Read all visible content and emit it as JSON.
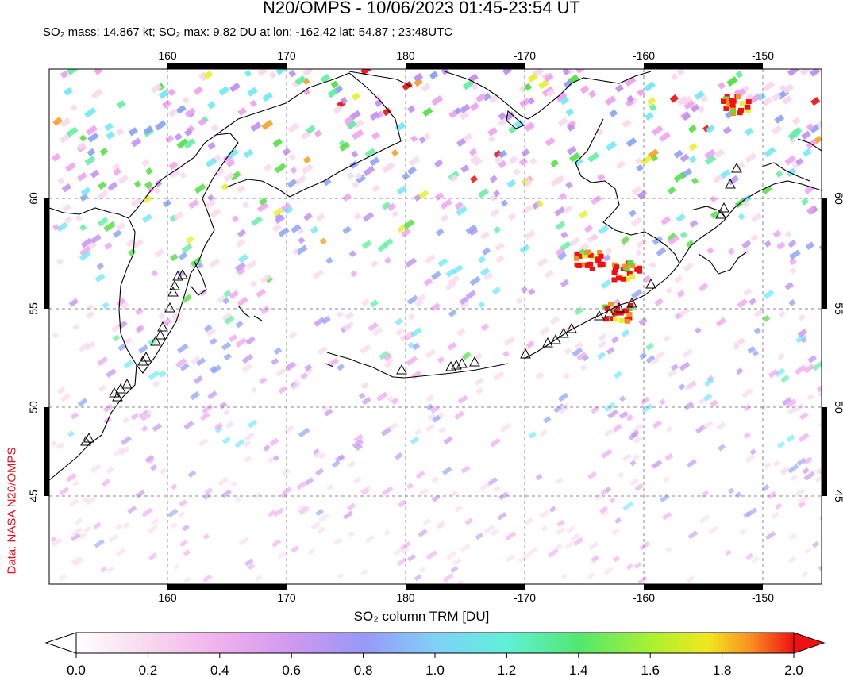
{
  "header": {
    "title": "N20/OMPS - 10/06/2023 01:45-23:54 UT",
    "subtitle": "SO₂ mass: 14.867 kt; SO₂ max: 9.82 DU at lon: -162.42 lat: 54.87 ; 23:48UTC"
  },
  "credit": "Data: NASA N20/OMPS",
  "map": {
    "lon_ticks": [
      "160",
      "170",
      "180",
      "-170",
      "-160",
      "-150"
    ],
    "lat_ticks": [
      "60",
      "55",
      "50",
      "45"
    ],
    "lon_range": [
      150,
      217
    ],
    "lat_range": [
      40.5,
      65
    ],
    "volcano_marker": "triangle-icon",
    "so2_hotspots": [
      {
        "lon": -162.4,
        "lat": 54.9,
        "level_du": 2.0
      },
      {
        "lon": -161.6,
        "lat": 56.8,
        "level_du": 2.0
      },
      {
        "lon": -164.8,
        "lat": 57.3,
        "level_du": 2.0
      },
      {
        "lon": -152.5,
        "lat": 63.7,
        "level_du": 1.9
      }
    ]
  },
  "colorbar": {
    "label": "SO₂ column TRM [DU]",
    "ticks": [
      "0.0",
      "0.2",
      "0.4",
      "0.6",
      "0.8",
      "1.0",
      "1.2",
      "1.4",
      "1.6",
      "1.8",
      "2.0"
    ],
    "colors": [
      "#ffffff",
      "#f8d8ee",
      "#f0a0f0",
      "#c090f0",
      "#8aa0f8",
      "#70e8f8",
      "#60f0a0",
      "#50e040",
      "#e8f030",
      "#f8a020",
      "#f01010"
    ]
  }
}
